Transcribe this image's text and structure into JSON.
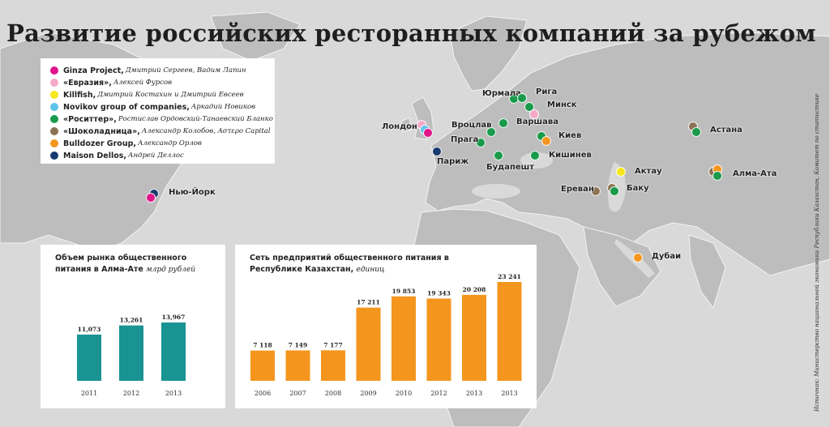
{
  "title": "Развитие российских ресторанных компаний за рубежом",
  "source": "Источник: Министерство национальной экономики Республики Казахстан, Комитет по статистике",
  "legend": [
    {
      "name": "Ginza Project,",
      "people": "Дмитрий Сергеев, Вадим Лапин",
      "color": "#e0158a"
    },
    {
      "name": "«Евразия»,",
      "people": "Алексей Фурсов",
      "color": "#f4a9c8"
    },
    {
      "name": "Killfish,",
      "people": "Дмитрий Костахин и Дмитрий Евсеев",
      "color": "#f5e61d"
    },
    {
      "name": "Novikov group of companies,",
      "people": "Аркадий Новиков",
      "color": "#5cc4ea"
    },
    {
      "name": "«Роситтер»,",
      "people": "Ростислав Ордовский-Танаевский Бланко",
      "color": "#1a9a4b"
    },
    {
      "name": "«Шоколадница»,",
      "people": "Александр Колобов, Aστερο Capital",
      "color": "#8b7355"
    },
    {
      "name": "Bulldozer Group,",
      "people": "Александр Орлов",
      "color": "#f4961e"
    },
    {
      "name": "Maison Dellos,",
      "people": "Андрей Деллос",
      "color": "#173a6e"
    }
  ],
  "cities": [
    {
      "name": "Лондон",
      "companies": [
        1,
        3,
        0
      ]
    },
    {
      "name": "Нью-Йорк",
      "companies": [
        7,
        0
      ]
    },
    {
      "name": "Париж",
      "companies": [
        7
      ]
    },
    {
      "name": "Юрмала",
      "companies": [
        4
      ]
    },
    {
      "name": "Рига",
      "companies": [
        4
      ]
    },
    {
      "name": "Минск",
      "companies": [
        4,
        1
      ]
    },
    {
      "name": "Вроцлав",
      "companies": [
        4
      ]
    },
    {
      "name": "Варшава",
      "companies": [
        4
      ]
    },
    {
      "name": "Прага",
      "companies": [
        4
      ]
    },
    {
      "name": "Киев",
      "companies": [
        4,
        6
      ]
    },
    {
      "name": "Кишинев",
      "companies": [
        4
      ]
    },
    {
      "name": "Будапешт",
      "companies": [
        4
      ]
    },
    {
      "name": "Астана",
      "companies": [
        5,
        4
      ]
    },
    {
      "name": "Актау",
      "companies": [
        2
      ]
    },
    {
      "name": "Алма-Ата",
      "companies": [
        5,
        6,
        4
      ]
    },
    {
      "name": "Ереван",
      "companies": [
        5
      ]
    },
    {
      "name": "Баку",
      "companies": [
        5,
        4
      ]
    },
    {
      "name": "Дубаи",
      "companies": [
        6
      ]
    }
  ],
  "chart_data": [
    {
      "type": "bar",
      "title": "Объем рынка общественного питания в Алма-Ате",
      "unit": "млрд рублей",
      "categories": [
        "2011",
        "2012",
        "2013"
      ],
      "values": [
        11.073,
        13.261,
        13.967
      ],
      "value_labels": [
        "11,073",
        "13,261",
        "13,967"
      ],
      "color": "#1a9393"
    },
    {
      "type": "bar",
      "title": "Сеть предприятий общественного питания в Республике Казахстан,",
      "unit": "единиц",
      "categories": [
        "2006",
        "2007",
        "2008",
        "2009",
        "2010",
        "2012",
        "2013",
        "2013"
      ],
      "values": [
        7118,
        7149,
        7177,
        17211,
        19853,
        19343,
        20208,
        23241
      ],
      "value_labels": [
        "7 118",
        "7 149",
        "7 177",
        "17 211",
        "19 853",
        "19 343",
        "20 208",
        "23 241"
      ],
      "color": "#f4961e"
    }
  ]
}
